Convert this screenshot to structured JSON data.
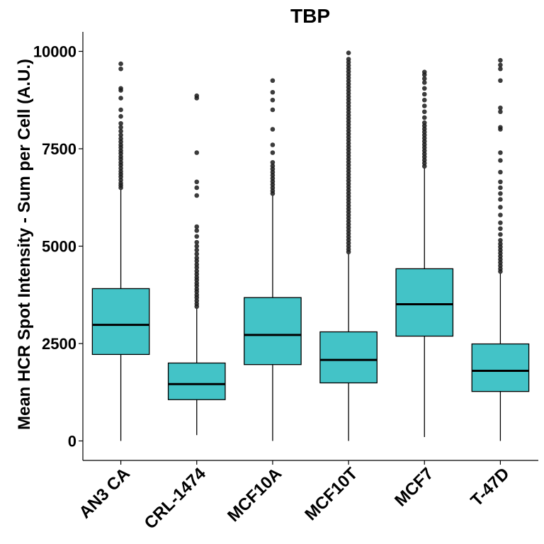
{
  "chart_data": {
    "type": "box",
    "title": "TBP",
    "xlabel": "",
    "ylabel": "Mean HCR Spot Intensity - Sum per Cell (A.U.)",
    "ylim": [
      -500,
      10500
    ],
    "yticks": [
      0,
      2500,
      5000,
      7500,
      10000
    ],
    "grid": false,
    "legend": "none",
    "fill_color": "#43c3c7",
    "categories": [
      "AN3 CA",
      "CRL-1474",
      "MCF10A",
      "MCF10T",
      "MCF7",
      "T-47D"
    ],
    "boxes": [
      {
        "whisker_low": 0,
        "q1": 2220,
        "median": 2980,
        "q3": 3910,
        "whisker_high": 6450,
        "outliers": [
          6500,
          6560,
          6620,
          6700,
          6780,
          6850,
          6920,
          7000,
          7080,
          7150,
          7230,
          7300,
          7380,
          7450,
          7530,
          7600,
          7680,
          7760,
          7850,
          7950,
          8050,
          8150,
          8330,
          8500,
          8800,
          9000,
          9050,
          9550,
          9680
        ]
      },
      {
        "whisker_low": 150,
        "q1": 1060,
        "median": 1460,
        "q3": 2000,
        "whisker_high": 3400,
        "outliers": [
          3450,
          3520,
          3600,
          3680,
          3750,
          3830,
          3900,
          3980,
          4050,
          4130,
          4200,
          4280,
          4360,
          4450,
          4530,
          4620,
          4700,
          4800,
          4900,
          5000,
          5100,
          5250,
          5400,
          5500,
          6300,
          6500,
          6650,
          7400,
          8800,
          8860
        ]
      },
      {
        "whisker_low": 0,
        "q1": 1960,
        "median": 2720,
        "q3": 3680,
        "whisker_high": 6300,
        "outliers": [
          6350,
          6420,
          6500,
          6580,
          6660,
          6740,
          6820,
          6900,
          6980,
          7060,
          7150,
          7400,
          7600,
          8000,
          8500,
          8750,
          8950,
          9250
        ]
      },
      {
        "whisker_low": 0,
        "q1": 1490,
        "median": 2080,
        "q3": 2800,
        "whisker_high": 4800,
        "outliers": [
          4850,
          4920,
          5000,
          5080,
          5160,
          5240,
          5320,
          5400,
          5480,
          5560,
          5640,
          5720,
          5800,
          5880,
          5960,
          6040,
          6120,
          6200,
          6280,
          6360,
          6440,
          6520,
          6600,
          6680,
          6760,
          6840,
          6920,
          7000,
          7080,
          7160,
          7240,
          7320,
          7400,
          7480,
          7560,
          7640,
          7720,
          7800,
          7880,
          7960,
          8040,
          8120,
          8200,
          8280,
          8360,
          8440,
          8520,
          8600,
          8680,
          8760,
          8840,
          8920,
          9000,
          9080,
          9160,
          9240,
          9320,
          9400,
          9480,
          9560,
          9640,
          9720,
          9800,
          9960
        ]
      },
      {
        "whisker_low": 100,
        "q1": 2690,
        "median": 3510,
        "q3": 4420,
        "whisker_high": 7000,
        "outliers": [
          7050,
          7130,
          7210,
          7290,
          7370,
          7450,
          7530,
          7610,
          7690,
          7770,
          7850,
          7930,
          8010,
          8090,
          8170,
          8300,
          8450,
          8600,
          8750,
          8900,
          9050,
          9200,
          9300,
          9400,
          9470
        ]
      },
      {
        "whisker_low": 0,
        "q1": 1270,
        "median": 1800,
        "q3": 2490,
        "whisker_high": 4300,
        "outliers": [
          4350,
          4420,
          4500,
          4580,
          4660,
          4740,
          4820,
          4900,
          4980,
          5060,
          5150,
          5300,
          5450,
          5600,
          5800,
          6000,
          6200,
          6350,
          6500,
          6650,
          6900,
          7200,
          7400,
          8000,
          8050,
          8450,
          8550,
          9250,
          9550,
          9650,
          9770
        ]
      }
    ]
  }
}
